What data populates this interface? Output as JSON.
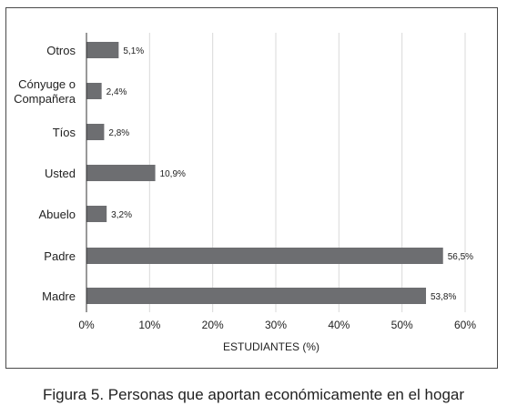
{
  "chart_data": {
    "type": "bar",
    "orientation": "horizontal",
    "categories": [
      "Otros",
      "Cónyuge o Compañera",
      "Tíos",
      "Usted",
      "Abuelo",
      "Padre",
      "Madre"
    ],
    "category_lines": [
      [
        "Otros"
      ],
      [
        "Cónyuge o",
        "Compañera"
      ],
      [
        "Tíos"
      ],
      [
        "Usted"
      ],
      [
        "Abuelo"
      ],
      [
        "Padre"
      ],
      [
        "Madre"
      ]
    ],
    "values": [
      5.1,
      2.4,
      2.8,
      10.9,
      3.2,
      56.5,
      53.8
    ],
    "data_labels": [
      "5,1%",
      "2,4%",
      "2,8%",
      "10,9%",
      "3,2%",
      "56,5%",
      "53,8%"
    ],
    "xlim": [
      0,
      60
    ],
    "x_ticks": [
      0,
      10,
      20,
      30,
      40,
      50,
      60
    ],
    "x_tick_labels": [
      "0%",
      "10%",
      "20%",
      "30%",
      "40%",
      "50%",
      "60%"
    ],
    "xlabel": "ESTUDIANTES (%)",
    "ylabel": "",
    "grid": "vertical",
    "bar_color": "#6d6e71"
  },
  "caption": {
    "figure_label": "Figura 5.",
    "text": "Personas que aportan económicamente en el hogar"
  }
}
